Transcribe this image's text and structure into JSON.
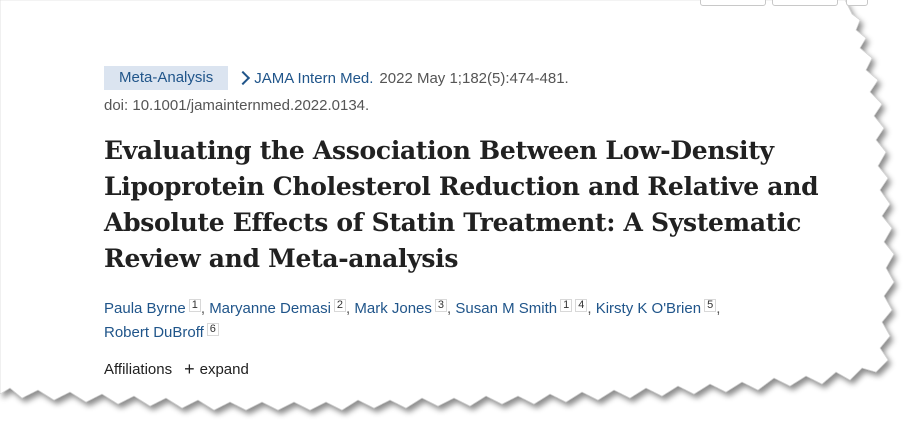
{
  "citation": {
    "pub_type": "Meta-Analysis",
    "journal": "JAMA Intern Med.",
    "date_volume": "2022 May 1;182(5):474-481.",
    "doi": "doi: 10.1001/jamainternmed.2022.0134."
  },
  "title": "Evaluating the Association Between Low-Density Lipoprotein Cholesterol Reduction and Relative and Absolute Effects of Statin Treatment: A Systematic Review and Meta-analysis",
  "authors": [
    {
      "name": "Paula Byrne",
      "affils": [
        "1"
      ]
    },
    {
      "name": "Maryanne Demasi",
      "affils": [
        "2"
      ]
    },
    {
      "name": "Mark Jones",
      "affils": [
        "3"
      ]
    },
    {
      "name": "Susan M Smith",
      "affils": [
        "1",
        "4"
      ]
    },
    {
      "name": "Kirsty K O'Brien",
      "affils": [
        "5"
      ]
    },
    {
      "name": "Robert DuBroff",
      "affils": [
        "6"
      ]
    }
  ],
  "affiliations": {
    "label": "Affiliations",
    "expand_icon": "plus-icon",
    "expand_label": "expand"
  },
  "colors": {
    "link": "#20558a",
    "badge_bg": "#dbe4f0",
    "title_text": "#212121"
  }
}
